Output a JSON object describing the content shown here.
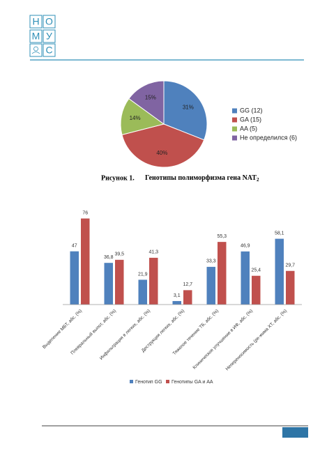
{
  "header": {
    "logo": [
      "Н",
      "О",
      "М",
      "У",
      "С"
    ]
  },
  "chart_data": [
    {
      "type": "pie",
      "categories": [
        "GG (12)",
        "GA (15)",
        "AA (5)",
        "Не определился (6)"
      ],
      "values": [
        31,
        40,
        14,
        15
      ],
      "value_labels": [
        "31%",
        "40%",
        "14%",
        "15%"
      ],
      "colors": [
        "#4f81bd",
        "#c0504d",
        "#9bbb59",
        "#8064a2"
      ],
      "legend": "right"
    },
    {
      "type": "bar",
      "categories": [
        "Выделение МБТ, абс. (%)",
        "Плевральный выпот, абс. (%)",
        "Инфильтрация в легких, абс. (%)",
        "Деструкция легких, абс. (%)",
        "Тяжелое течение ТБ, абс. (%)",
        "Клиническое улучшение в ИФ, абс. (%)",
        "Непереносимость (ре-жима ХТ, абс. (%)"
      ],
      "series": [
        {
          "name": "Генотип GG",
          "color": "#4f81bd",
          "values": [
            47,
            36.8,
            21.9,
            3.1,
            33.3,
            46.9,
            58.1
          ],
          "value_labels": [
            "47",
            "36,8",
            "21,9",
            "3,1",
            "33,3",
            "46,9",
            "58,1"
          ]
        },
        {
          "name": "Генотипы GA и AA",
          "color": "#c0504d",
          "values": [
            76,
            39.5,
            41.3,
            12.7,
            55.3,
            25.4,
            29.7
          ],
          "value_labels": [
            "76",
            "39,5",
            "41,3",
            "12,7",
            "55,3",
            "25,4",
            "29,7"
          ]
        }
      ],
      "ylim": [
        0,
        80
      ],
      "legend": "bottom"
    }
  ],
  "caption": {
    "label": "Рисунок 1.",
    "text": "Генотипы полиморфизма гена NAT",
    "subscript": "2"
  }
}
